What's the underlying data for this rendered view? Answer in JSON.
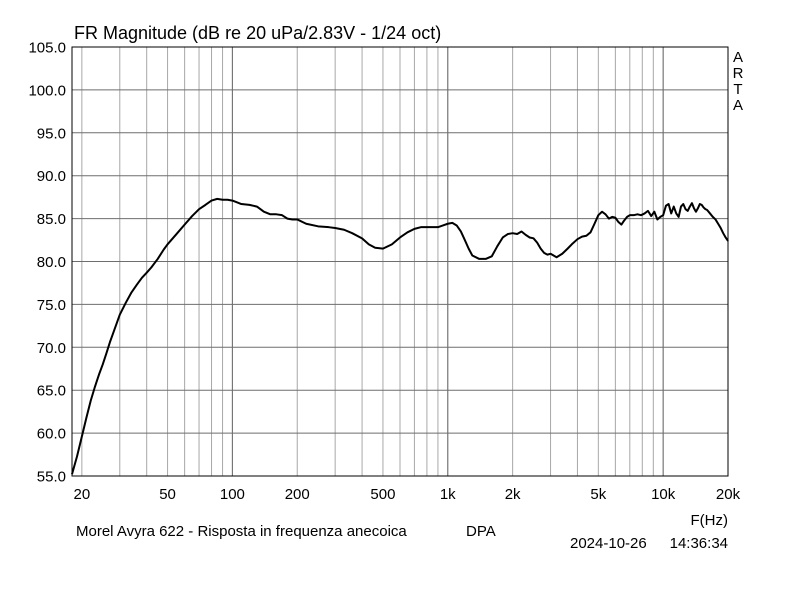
{
  "chart_data": {
    "type": "line",
    "title": "FR Magnitude (dB re 20 uPa/2.83V - 1/24 oct)",
    "side_label": [
      "A",
      "R",
      "T",
      "A"
    ],
    "xlabel": "F(Hz)",
    "ylabel": "",
    "x_scale": "log",
    "xlim": [
      18,
      20000
    ],
    "ylim": [
      55,
      105
    ],
    "grid": true,
    "x_ticks": [
      {
        "value": 20,
        "label": "20"
      },
      {
        "value": 50,
        "label": "50"
      },
      {
        "value": 100,
        "label": "100"
      },
      {
        "value": 200,
        "label": "200"
      },
      {
        "value": 500,
        "label": "500"
      },
      {
        "value": 1000,
        "label": "1k"
      },
      {
        "value": 2000,
        "label": "2k"
      },
      {
        "value": 5000,
        "label": "5k"
      },
      {
        "value": 10000,
        "label": "10k"
      },
      {
        "value": 20000,
        "label": "20k"
      }
    ],
    "y_ticks": [
      {
        "value": 105,
        "label": "105.0"
      },
      {
        "value": 100,
        "label": "100.0"
      },
      {
        "value": 95,
        "label": "95.0"
      },
      {
        "value": 90,
        "label": "90.0"
      },
      {
        "value": 85,
        "label": "85.0"
      },
      {
        "value": 80,
        "label": "80.0"
      },
      {
        "value": 75,
        "label": "75.0"
      },
      {
        "value": 70,
        "label": "70.0"
      },
      {
        "value": 65,
        "label": "65.0"
      },
      {
        "value": 60,
        "label": "60.0"
      },
      {
        "value": 55,
        "label": "55.0"
      }
    ],
    "series": [
      {
        "color": "#000000",
        "x": [
          18,
          19,
          20,
          21,
          22,
          23,
          24,
          25,
          26,
          27,
          28,
          30,
          32,
          34,
          36,
          38,
          40,
          42,
          45,
          48,
          50,
          55,
          60,
          65,
          70,
          75,
          80,
          85,
          90,
          95,
          100,
          105,
          110,
          120,
          130,
          140,
          150,
          160,
          170,
          180,
          190,
          200,
          220,
          250,
          280,
          300,
          330,
          360,
          400,
          430,
          460,
          500,
          550,
          600,
          650,
          700,
          750,
          800,
          850,
          900,
          950,
          1000,
          1050,
          1100,
          1150,
          1200,
          1250,
          1300,
          1400,
          1500,
          1600,
          1700,
          1800,
          1900,
          2000,
          2100,
          2200,
          2300,
          2400,
          2500,
          2600,
          2700,
          2800,
          2900,
          3000,
          3200,
          3400,
          3600,
          3800,
          4000,
          4200,
          4400,
          4600,
          4800,
          5000,
          5200,
          5400,
          5600,
          5800,
          6000,
          6200,
          6400,
          6600,
          6800,
          7000,
          7300,
          7600,
          7900,
          8200,
          8500,
          8800,
          9100,
          9400,
          9700,
          10000,
          10300,
          10600,
          10900,
          11200,
          11500,
          11800,
          12100,
          12400,
          12700,
          13000,
          13300,
          13600,
          13900,
          14200,
          14500,
          14800,
          15100,
          15400,
          15700,
          16000,
          16500,
          17000,
          17500,
          18000,
          18500,
          19000,
          19500,
          20000
        ],
        "y": [
          55.2,
          57.3,
          59.6,
          61.8,
          63.8,
          65.4,
          66.8,
          68.0,
          69.3,
          70.6,
          71.7,
          73.8,
          75.2,
          76.4,
          77.3,
          78.1,
          78.7,
          79.3,
          80.3,
          81.4,
          82.0,
          83.2,
          84.3,
          85.3,
          86.1,
          86.6,
          87.1,
          87.3,
          87.2,
          87.2,
          87.1,
          86.9,
          86.7,
          86.6,
          86.4,
          85.8,
          85.5,
          85.5,
          85.4,
          85.0,
          84.9,
          84.9,
          84.4,
          84.1,
          84.0,
          83.9,
          83.7,
          83.3,
          82.7,
          82.0,
          81.6,
          81.5,
          82.0,
          82.8,
          83.4,
          83.8,
          84.0,
          84.0,
          84.0,
          84.0,
          84.2,
          84.4,
          84.5,
          84.2,
          83.5,
          82.5,
          81.5,
          80.7,
          80.3,
          80.3,
          80.6,
          81.8,
          82.8,
          83.2,
          83.3,
          83.2,
          83.5,
          83.1,
          82.8,
          82.7,
          82.2,
          81.5,
          81.0,
          80.8,
          80.9,
          80.5,
          80.9,
          81.5,
          82.1,
          82.6,
          82.9,
          83.0,
          83.4,
          84.4,
          85.4,
          85.8,
          85.5,
          85.0,
          85.2,
          85.1,
          84.6,
          84.3,
          84.8,
          85.2,
          85.4,
          85.4,
          85.5,
          85.4,
          85.6,
          85.9,
          85.3,
          85.8,
          84.9,
          85.2,
          85.4,
          86.5,
          86.7,
          85.6,
          86.4,
          85.6,
          85.2,
          86.4,
          86.7,
          86.1,
          85.9,
          86.4,
          86.8,
          86.2,
          85.8,
          86.2,
          86.7,
          86.6,
          86.3,
          86.1,
          86.0,
          85.6,
          85.2,
          84.9,
          84.4,
          83.9,
          83.3,
          82.8,
          82.4
        ]
      }
    ]
  },
  "footer": {
    "caption": "Morel Avyra 622 - Risposta in frequenza anecoica",
    "code": "DPA",
    "date": "2024-10-26",
    "time": "14:36:34"
  }
}
